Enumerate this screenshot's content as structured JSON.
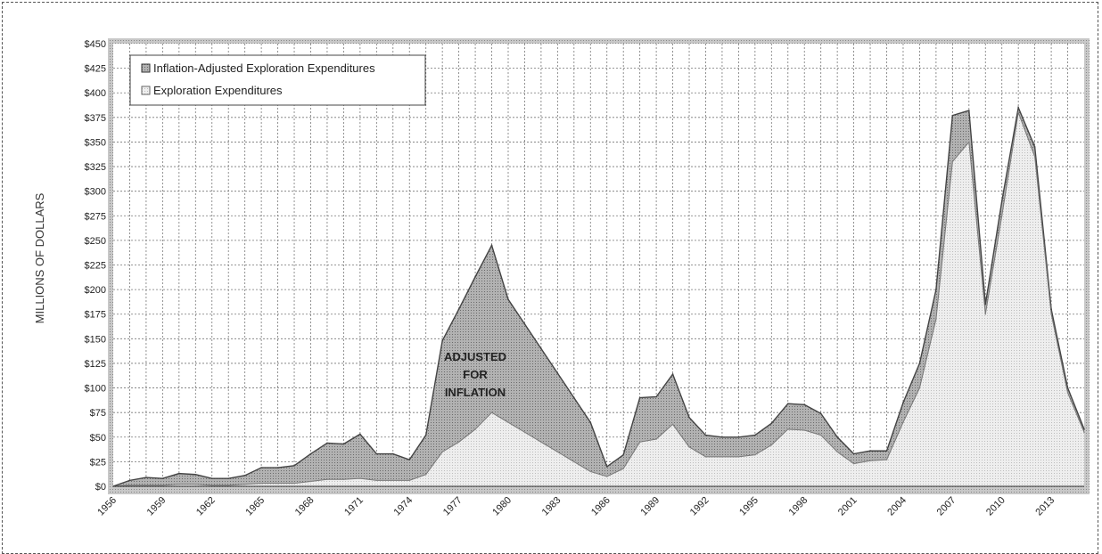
{
  "chart_data": {
    "type": "area",
    "ylabel": "MILLIONS OF DOLLARS",
    "xlabel": "",
    "title": "",
    "ylim": [
      0,
      450
    ],
    "xlim": [
      1956,
      2015
    ],
    "x_tick_labels": [
      "1956",
      "1959",
      "1962",
      "1965",
      "1968",
      "1971",
      "1974",
      "1977",
      "1980",
      "1983",
      "1986",
      "1989",
      "1992",
      "1995",
      "1998",
      "2001",
      "2004",
      "2007",
      "2010",
      "2013"
    ],
    "y_tick_labels": [
      "$0",
      "$25",
      "$50",
      "$75",
      "$100",
      "$125",
      "$150",
      "$175",
      "$200",
      "$225",
      "$250",
      "$275",
      "$300",
      "$325",
      "$350",
      "$375",
      "$400",
      "$425",
      "$450"
    ],
    "legend_position": "top-left",
    "grid": true,
    "annotation": [
      "ADJUSTED",
      "FOR",
      "INFLATION"
    ],
    "x": [
      1956,
      1957,
      1958,
      1959,
      1960,
      1961,
      1962,
      1963,
      1964,
      1965,
      1966,
      1967,
      1968,
      1969,
      1970,
      1971,
      1972,
      1973,
      1974,
      1975,
      1976,
      1977,
      1978,
      1979,
      1980,
      1981,
      1982,
      1983,
      1984,
      1985,
      1986,
      1987,
      1988,
      1989,
      1990,
      1991,
      1992,
      1993,
      1994,
      1995,
      1996,
      1997,
      1998,
      1999,
      2000,
      2001,
      2002,
      2003,
      2004,
      2005,
      2006,
      2007,
      2008,
      2009,
      2010,
      2011,
      2012,
      2013,
      2014,
      2015
    ],
    "series": [
      {
        "name": "Inflation-Adjusted Exploration Expenditures",
        "values": [
          0,
          6,
          9,
          8,
          13,
          12,
          8,
          8,
          11,
          19,
          19,
          21,
          33,
          44,
          43,
          53,
          33,
          33,
          27,
          52,
          148,
          180,
          213,
          245,
          190,
          165,
          140,
          115,
          90,
          65,
          20,
          32,
          90,
          91,
          114,
          70,
          52,
          50,
          50,
          52,
          64,
          84,
          83,
          74,
          50,
          33,
          36,
          36,
          85,
          125,
          200,
          377,
          382,
          185,
          290,
          385,
          345,
          180,
          100,
          58
        ]
      },
      {
        "name": "Exploration Expenditures",
        "values": [
          0,
          1,
          1,
          1,
          2,
          2,
          1,
          1,
          2,
          3,
          3,
          3,
          5,
          7,
          7,
          8,
          6,
          6,
          6,
          12,
          35,
          45,
          58,
          75,
          65,
          55,
          45,
          35,
          25,
          15,
          10,
          18,
          45,
          48,
          63,
          40,
          30,
          30,
          30,
          32,
          42,
          58,
          57,
          52,
          35,
          23,
          26,
          27,
          65,
          100,
          170,
          330,
          350,
          175,
          275,
          380,
          335,
          175,
          95,
          55
        ]
      }
    ],
    "colors": {
      "adjusted_fill": "#a9a9a9",
      "nominal_fill": "#e3e3e3",
      "line": "#444444",
      "grid": "#777777"
    }
  }
}
